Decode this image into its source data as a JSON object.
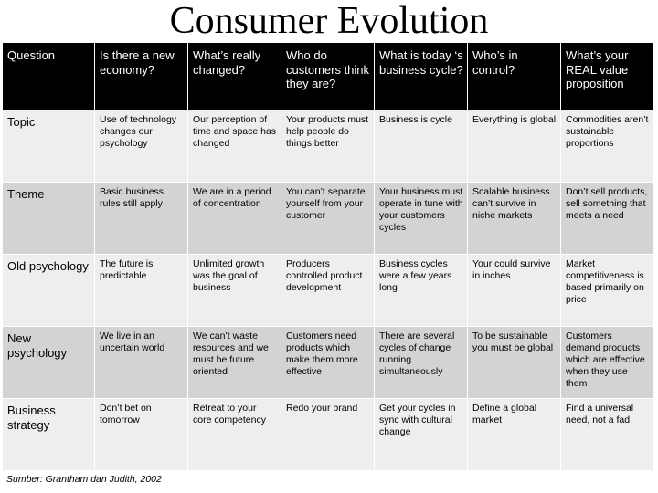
{
  "title": "Consumer Evolution",
  "header": {
    "row_label": "Question",
    "columns": [
      "Is there a new economy?",
      "What’s really changed?",
      "Who do customers think they are?",
      "What is today ‘s business cycle?",
      "Who’s in control?",
      "What’s your REAL value proposition"
    ]
  },
  "rows": [
    {
      "label": "Topic",
      "cells": [
        "Use of technology changes our psychology",
        "Our perception of time and space has changed",
        "Your products must help people do things better",
        "Business is cycle",
        "Everything is global",
        "Commodities aren’t sustainable proportions"
      ]
    },
    {
      "label": "Theme",
      "cells": [
        "Basic business rules still apply",
        "We are in a period of concentration",
        "You can’t separate yourself from your customer",
        "Your business must operate in tune with your customers cycles",
        "Scalable business can’t survive in niche markets",
        "Don’t sell products, sell something that meets a need"
      ]
    },
    {
      "label": "Old psychology",
      "cells": [
        "The future is predictable",
        "Unlimited growth was the goal of business",
        "Producers controlled product development",
        "Business cycles were a few years long",
        "Your could survive in inches",
        "Market competitiveness is based primarily on price"
      ]
    },
    {
      "label": "New psychology",
      "cells": [
        "We live in an uncertain world",
        "We can’t waste resources and we must be future oriented",
        "Customers need products which make them more effective",
        "There are several cycles of change running simultaneously",
        "To be sustainable you must be global",
        "Customers demand products which are effective when they use them"
      ]
    },
    {
      "label": "Business strategy",
      "cells": [
        "Don’t bet on tomorrow",
        "Retreat to your core competency",
        "Redo your brand",
        "Get your cycles in sync with cultural change",
        "Define a global market",
        "Find a universal need, not a fad."
      ]
    }
  ],
  "source": "Sumber: Grantham dan Judith, 2002"
}
